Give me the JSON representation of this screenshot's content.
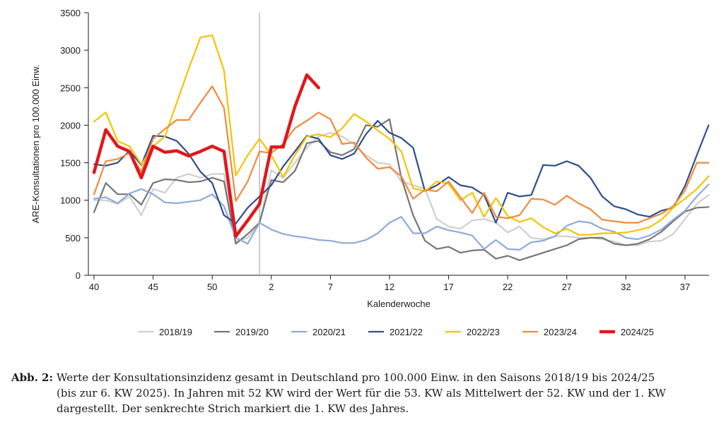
{
  "chart_data": {
    "type": "line",
    "xlabel": "Kalenderwoche",
    "ylabel": "ARE-Konsultationen pro 100.000 Einw.",
    "ylim": [
      0,
      3500
    ],
    "yticks": [
      "0",
      "500",
      "1000",
      "1500",
      "2000",
      "2500",
      "3000",
      "3500"
    ],
    "xtick_labels": [
      {
        "pos": 0,
        "label": "40"
      },
      {
        "pos": 5,
        "label": "45"
      },
      {
        "pos": 10,
        "label": "50"
      },
      {
        "pos": 15,
        "label": "2"
      },
      {
        "pos": 20,
        "label": "7"
      },
      {
        "pos": 25,
        "label": "12"
      },
      {
        "pos": 30,
        "label": "17"
      },
      {
        "pos": 35,
        "label": "22"
      },
      {
        "pos": 40,
        "label": "27"
      },
      {
        "pos": 45,
        "label": "32"
      },
      {
        "pos": 50,
        "label": "37"
      }
    ],
    "x_range": [
      0,
      52
    ],
    "year_start_marker": 14,
    "legend_position": "bottom",
    "series": [
      {
        "name": "2018/19",
        "color": "#cfcfcf",
        "width": 2.2,
        "values": [
          1000,
          1000,
          950,
          1050,
          800,
          1150,
          1100,
          1300,
          1350,
          1300,
          1350,
          1350,
          450,
          500,
          700,
          1400,
          1300,
          1500,
          1700,
          1850,
          1900,
          1850,
          1750,
          1600,
          1500,
          1480,
          1250,
          1200,
          1150,
          750,
          650,
          620,
          730,
          750,
          700,
          570,
          650,
          500,
          480,
          520,
          520,
          500,
          500,
          480,
          450,
          400,
          400,
          450,
          460,
          550,
          750,
          950,
          1070
        ]
      },
      {
        "name": "2019/20",
        "color": "#767676",
        "width": 2.2,
        "values": [
          840,
          1230,
          1080,
          1080,
          940,
          1230,
          1280,
          1270,
          1240,
          1250,
          1300,
          1250,
          420,
          550,
          700,
          1270,
          1240,
          1390,
          1760,
          1790,
          1640,
          1600,
          1680,
          2000,
          1980,
          2080,
          1300,
          800,
          460,
          350,
          380,
          300,
          330,
          340,
          220,
          260,
          200,
          250,
          300,
          350,
          400,
          480,
          500,
          500,
          420,
          400,
          420,
          480,
          580,
          720,
          850,
          900,
          910
        ]
      },
      {
        "name": "2020/21",
        "color": "#8eaadb",
        "width": 2.2,
        "values": [
          1020,
          1040,
          960,
          1090,
          1150,
          1080,
          970,
          960,
          980,
          1000,
          1080,
          920,
          500,
          420,
          700,
          610,
          550,
          520,
          500,
          470,
          460,
          430,
          430,
          470,
          560,
          700,
          780,
          560,
          560,
          650,
          600,
          570,
          530,
          350,
          470,
          350,
          340,
          440,
          460,
          520,
          660,
          720,
          700,
          620,
          580,
          500,
          480,
          530,
          610,
          740,
          860,
          1050,
          1210
        ]
      },
      {
        "name": "2021/22",
        "color": "#2d4f8a",
        "width": 2.2,
        "values": [
          1480,
          1460,
          1500,
          1660,
          1470,
          1860,
          1850,
          1790,
          1620,
          1380,
          1230,
          800,
          690,
          900,
          1050,
          1200,
          1450,
          1650,
          1860,
          1820,
          1600,
          1550,
          1620,
          1880,
          2060,
          1900,
          1830,
          1700,
          1120,
          1200,
          1310,
          1200,
          1170,
          1070,
          700,
          1100,
          1050,
          1070,
          1470,
          1460,
          1520,
          1460,
          1300,
          1050,
          920,
          880,
          810,
          780,
          860,
          900,
          1190,
          1600,
          2000
        ]
      },
      {
        "name": "2022/23",
        "color": "#f5c400",
        "width": 2.2,
        "values": [
          2050,
          2170,
          1790,
          1720,
          1480,
          1720,
          1850,
          2300,
          2750,
          3170,
          3200,
          2730,
          1330,
          1600,
          1820,
          1600,
          1310,
          1600,
          1850,
          1880,
          1840,
          1960,
          2150,
          2050,
          1930,
          1820,
          1650,
          1160,
          1120,
          1250,
          1220,
          1000,
          1100,
          780,
          1030,
          790,
          710,
          760,
          640,
          560,
          620,
          540,
          540,
          560,
          560,
          570,
          600,
          640,
          740,
          900,
          1020,
          1150,
          1320
        ]
      },
      {
        "name": "2023/24",
        "color": "#f28a3e",
        "width": 2.2,
        "values": [
          1080,
          1520,
          1550,
          1630,
          1380,
          1820,
          1950,
          2070,
          2070,
          2300,
          2520,
          2230,
          990,
          1250,
          1650,
          1630,
          1750,
          1960,
          2060,
          2170,
          2080,
          1750,
          1770,
          1570,
          1420,
          1440,
          1320,
          1020,
          1140,
          1120,
          1250,
          1040,
          830,
          1100,
          780,
          760,
          800,
          1020,
          1010,
          940,
          1060,
          960,
          880,
          740,
          720,
          700,
          700,
          760,
          820,
          920,
          1130,
          1500,
          1500
        ]
      },
      {
        "name": "2024/25",
        "color": "#e1181b",
        "width": 4.5,
        "values": [
          1370,
          1940,
          1720,
          1650,
          1300,
          1720,
          1640,
          1660,
          1590,
          1650,
          1720,
          1650,
          520,
          730,
          950,
          1710,
          1710,
          2250,
          2670,
          2500
        ]
      }
    ]
  },
  "caption": {
    "label": "Abb. 2",
    "separator": ":",
    "lines": [
      "Werte der Konsultationsinzidenz gesamt in Deutschland pro 100.000 Einw. in den Saisons 2018/19 bis 2024/25",
      "(bis zur 6. KW 2025). In Jahren mit 52 KW wird der Wert für die 53. KW als Mittelwert der 52. KW und der 1. KW",
      "dargestellt. Der senkrechte Strich markiert die 1. KW des Jahres."
    ]
  }
}
